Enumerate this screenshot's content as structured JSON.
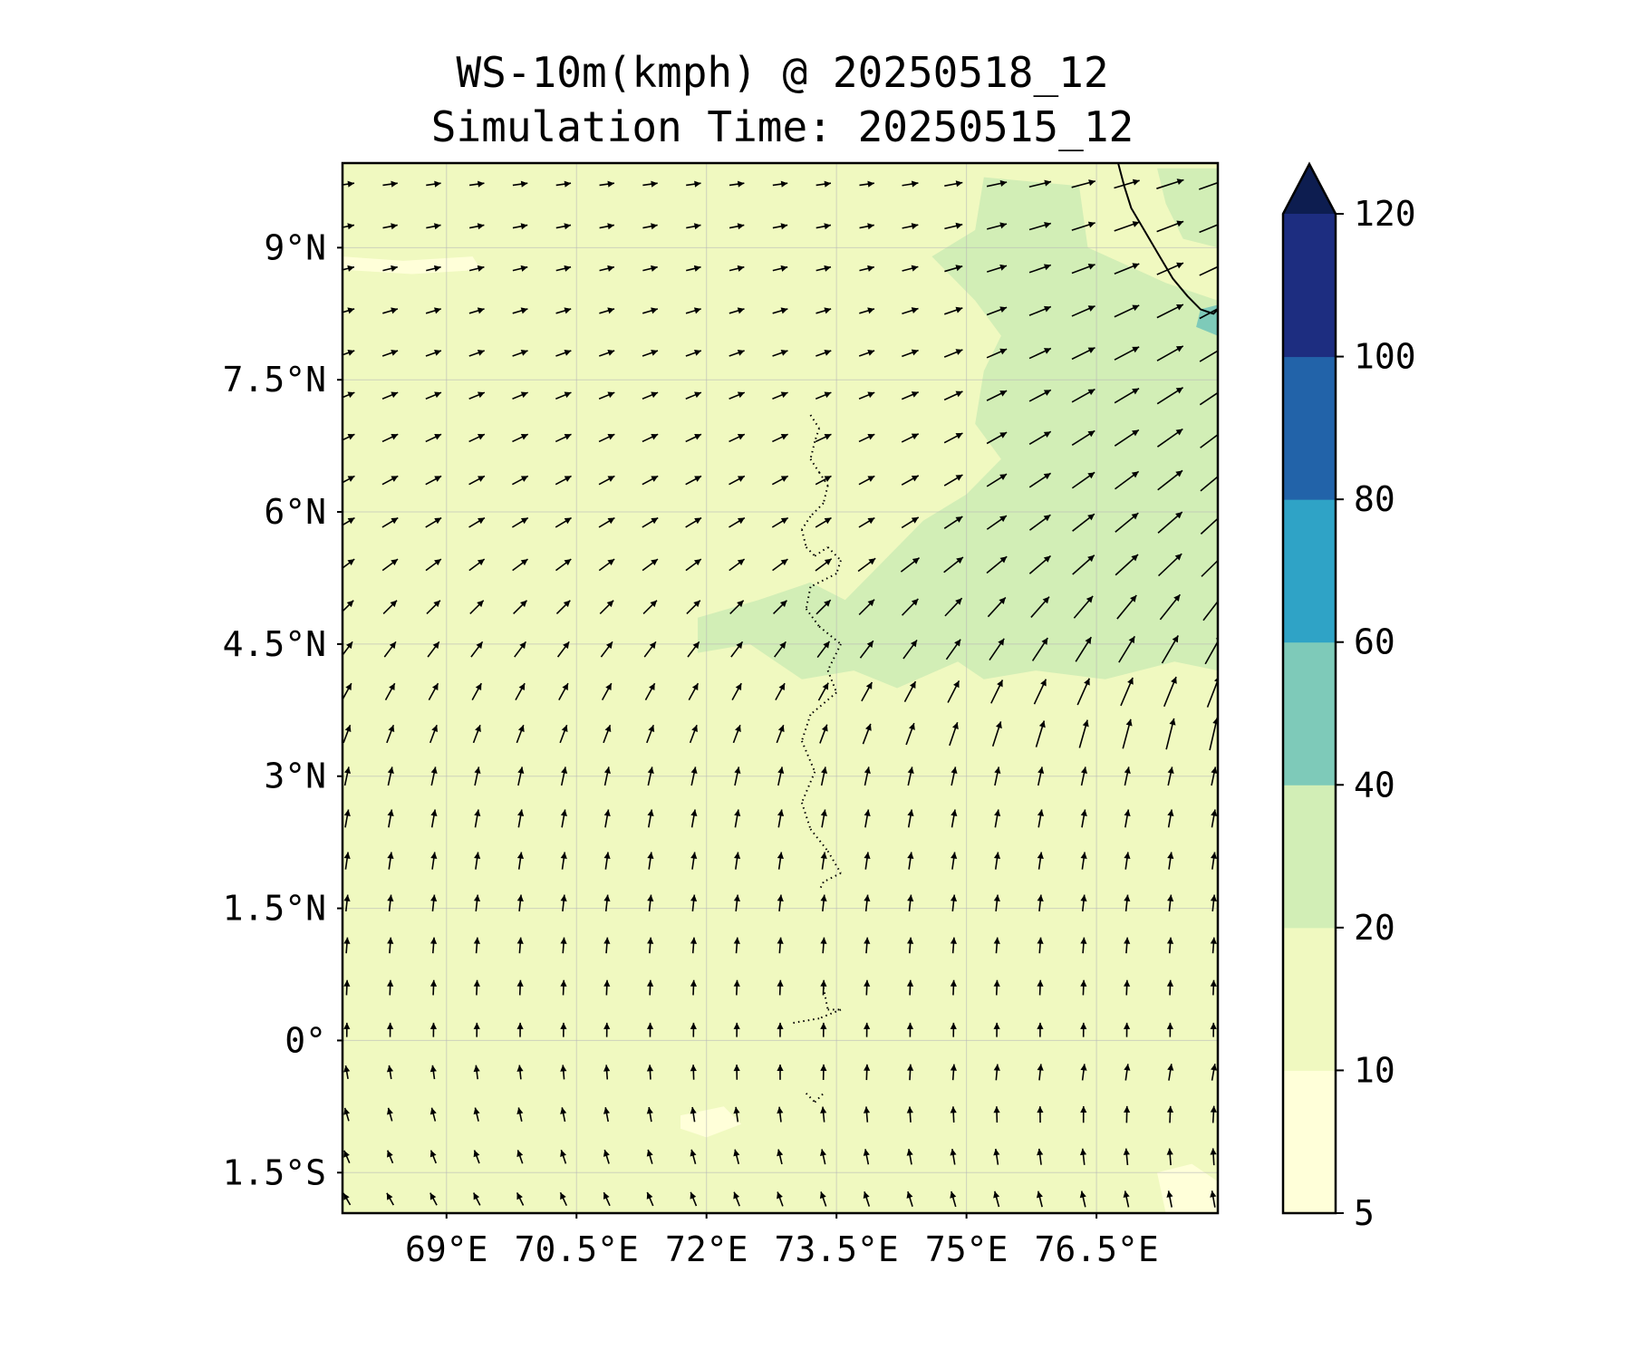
{
  "title": "WS-10m(kmph) @ 20250518_12",
  "subtitle": "Simulation Time: 20250515_12",
  "map": {
    "lon_range": [
      67.8,
      77.9
    ],
    "lat_range": [
      -1.96,
      9.96
    ],
    "lon_ticks": [
      {
        "value": 69,
        "label": "69°E"
      },
      {
        "value": 70.5,
        "label": "70.5°E"
      },
      {
        "value": 72,
        "label": "72°E"
      },
      {
        "value": 73.5,
        "label": "73.5°E"
      },
      {
        "value": 75,
        "label": "75°E"
      },
      {
        "value": 76.5,
        "label": "76.5°E"
      }
    ],
    "lat_ticks": [
      {
        "value": 9,
        "label": "9°N"
      },
      {
        "value": 7.5,
        "label": "7.5°N"
      },
      {
        "value": 6,
        "label": "6°N"
      },
      {
        "value": 4.5,
        "label": "4.5°N"
      },
      {
        "value": 3,
        "label": "3°N"
      },
      {
        "value": 1.5,
        "label": "1.5°N"
      },
      {
        "value": 0,
        "label": "0°"
      },
      {
        "value": -1.5,
        "label": "1.5°S"
      }
    ],
    "grid": true,
    "background_class": "10-20"
  },
  "colorbar": {
    "levels": [
      5,
      10,
      20,
      40,
      60,
      80,
      100,
      120
    ],
    "colors": [
      "#ffffd9",
      "#f0f9c0",
      "#d2eeb6",
      "#7ecab9",
      "#2fa3c6",
      "#2263a9",
      "#1d2d80"
    ],
    "extend_color": "#0d1d50",
    "extend": "max"
  },
  "wind_field": {
    "units": "kmph",
    "description_north": "westerly to south-westerly flow, strongest near the south-west Indian coast",
    "description_south": "south-south-easterly to southerly flow"
  },
  "contour_regions": [
    {
      "level": "20-40",
      "color": "#d2eeb6",
      "polygon": [
        [
          75.2,
          9.8
        ],
        [
          76.3,
          9.7
        ],
        [
          76.4,
          9.0
        ],
        [
          77.3,
          8.6
        ],
        [
          77.9,
          8.4
        ],
        [
          77.9,
          4.2
        ],
        [
          77.4,
          4.3
        ],
        [
          76.6,
          4.1
        ],
        [
          75.8,
          4.2
        ],
        [
          75.2,
          4.1
        ],
        [
          74.9,
          4.3
        ],
        [
          74.2,
          4.0
        ],
        [
          73.7,
          4.2
        ],
        [
          73.1,
          4.1
        ],
        [
          72.5,
          4.5
        ],
        [
          71.9,
          4.4
        ],
        [
          71.9,
          4.8
        ],
        [
          72.6,
          5.0
        ],
        [
          73.2,
          5.2
        ],
        [
          73.6,
          5.0
        ],
        [
          74.0,
          5.4
        ],
        [
          74.5,
          5.9
        ],
        [
          75.0,
          6.2
        ],
        [
          75.4,
          6.6
        ],
        [
          75.1,
          7.0
        ],
        [
          75.2,
          7.6
        ],
        [
          75.4,
          8.0
        ],
        [
          75.1,
          8.4
        ],
        [
          74.6,
          8.9
        ],
        [
          75.1,
          9.2
        ]
      ]
    },
    {
      "level": "20-40",
      "color": "#d2eeb6",
      "polygon": [
        [
          77.2,
          9.9
        ],
        [
          77.9,
          9.9
        ],
        [
          77.9,
          9.0
        ],
        [
          77.5,
          9.1
        ],
        [
          77.3,
          9.5
        ]
      ]
    },
    {
      "level": "40-60",
      "color": "#7ecab9",
      "polygon": [
        [
          77.65,
          8.1
        ],
        [
          77.9,
          8.0
        ],
        [
          77.9,
          8.35
        ],
        [
          77.7,
          8.3
        ]
      ]
    },
    {
      "level": "5-10",
      "color": "#ffffd9",
      "polygon": [
        [
          67.8,
          8.9
        ],
        [
          68.5,
          8.85
        ],
        [
          69.3,
          8.9
        ],
        [
          69.4,
          8.75
        ],
        [
          68.6,
          8.7
        ],
        [
          67.8,
          8.75
        ]
      ]
    },
    {
      "level": "5-10",
      "color": "#ffffd9",
      "polygon": [
        [
          71.7,
          -0.85
        ],
        [
          72.2,
          -0.75
        ],
        [
          72.4,
          -0.95
        ],
        [
          72.0,
          -1.1
        ],
        [
          71.7,
          -1.0
        ]
      ]
    },
    {
      "level": "5-10",
      "color": "#ffffd9",
      "polygon": [
        [
          77.2,
          -1.5
        ],
        [
          77.6,
          -1.4
        ],
        [
          77.9,
          -1.6
        ],
        [
          77.9,
          -1.96
        ],
        [
          77.3,
          -1.96
        ]
      ]
    }
  ],
  "coastline": {
    "points": [
      [
        76.75,
        9.96
      ],
      [
        76.82,
        9.7
      ],
      [
        76.9,
        9.45
      ],
      [
        77.05,
        9.2
      ],
      [
        77.2,
        8.95
      ],
      [
        77.38,
        8.65
      ],
      [
        77.55,
        8.45
      ],
      [
        77.7,
        8.3
      ],
      [
        77.85,
        8.25
      ],
      [
        77.9,
        8.3
      ]
    ]
  },
  "islands": {
    "points": [
      [
        73.2,
        7.1
      ],
      [
        73.3,
        6.95
      ],
      [
        73.25,
        6.8
      ],
      [
        73.2,
        6.6
      ],
      [
        73.3,
        6.45
      ],
      [
        73.4,
        6.3
      ],
      [
        73.35,
        6.1
      ],
      [
        73.2,
        5.95
      ],
      [
        73.1,
        5.8
      ],
      [
        73.15,
        5.6
      ],
      [
        73.25,
        5.5
      ],
      [
        73.4,
        5.6
      ],
      [
        73.55,
        5.45
      ],
      [
        73.5,
        5.3
      ],
      [
        73.2,
        5.15
      ],
      [
        73.15,
        4.9
      ],
      [
        73.3,
        4.7
      ],
      [
        73.55,
        4.5
      ],
      [
        73.4,
        4.2
      ],
      [
        73.5,
        3.95
      ],
      [
        73.2,
        3.7
      ],
      [
        73.1,
        3.4
      ],
      [
        73.25,
        3.05
      ],
      [
        73.1,
        2.7
      ],
      [
        73.2,
        2.4
      ],
      [
        73.4,
        2.15
      ],
      [
        73.55,
        1.9
      ],
      [
        73.35,
        1.8
      ],
      [
        73.3,
        1.7
      ],
      [
        73.35,
        0.6
      ],
      [
        73.4,
        0.35
      ],
      [
        73.55,
        0.35
      ],
      [
        73.3,
        0.25
      ],
      [
        73.0,
        0.2
      ],
      [
        73.15,
        -0.6
      ],
      [
        73.25,
        -0.7
      ],
      [
        73.35,
        -0.6
      ]
    ]
  }
}
